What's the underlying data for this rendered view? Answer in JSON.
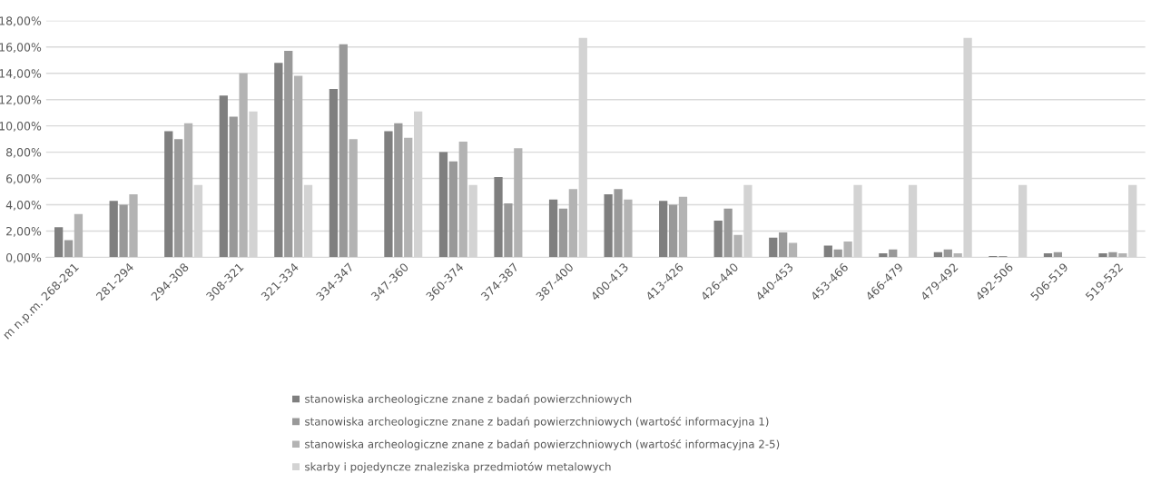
{
  "chart_data": {
    "type": "bar",
    "categories": [
      "m n.p.m. 268-281",
      "281-294",
      "294-308",
      "308-321",
      "321-334",
      "334-347",
      "347-360",
      "360-374",
      "374-387",
      "387-400",
      "400-413",
      "413-426",
      "426-440",
      "440-453",
      "453-466",
      "466-479",
      "479-492",
      "492-506",
      "506-519",
      "519-532"
    ],
    "series": [
      {
        "name": "stanowiska archeologiczne znane z badań powierzchniowych",
        "color": "#7f7f7f",
        "values": [
          2.3,
          4.3,
          9.6,
          12.3,
          14.8,
          12.8,
          9.6,
          8.0,
          6.1,
          4.4,
          4.8,
          4.3,
          2.8,
          1.5,
          0.9,
          0.3,
          0.4,
          0.1,
          0.3,
          0.3
        ]
      },
      {
        "name": "stanowiska archeologiczne znane z badań powierzchniowych (wartość informacyjna 1)",
        "color": "#999999",
        "values": [
          1.3,
          4.0,
          9.0,
          10.7,
          15.7,
          16.2,
          10.2,
          7.3,
          4.1,
          3.7,
          5.2,
          4.0,
          3.7,
          1.9,
          0.6,
          0.6,
          0.6,
          0.1,
          0.4,
          0.4
        ]
      },
      {
        "name": "stanowiska archeologiczne znane z badań powierzchniowych (wartość informacyjna 2-5)",
        "color": "#b3b3b3",
        "values": [
          3.3,
          4.8,
          10.2,
          14.0,
          13.8,
          9.0,
          9.1,
          8.8,
          8.3,
          5.2,
          4.4,
          4.6,
          1.7,
          1.1,
          1.2,
          0,
          0.3,
          0,
          0,
          0.3
        ]
      },
      {
        "name": "skarby i pojedyncze znaleziska przedmiotów metalowych",
        "color": "#d3d3d3",
        "values": [
          0,
          0,
          5.5,
          11.1,
          5.5,
          0,
          11.1,
          5.5,
          0,
          16.7,
          0,
          0,
          5.5,
          0,
          5.5,
          5.5,
          16.7,
          5.5,
          0,
          5.5
        ]
      }
    ],
    "ylim": [
      0,
      18
    ],
    "yticks": [
      {
        "value": 0,
        "label": "0,00%"
      },
      {
        "value": 2,
        "label": "2,00%"
      },
      {
        "value": 4,
        "label": "4,00%"
      },
      {
        "value": 6,
        "label": "6,00%"
      },
      {
        "value": 8,
        "label": "8,00%"
      },
      {
        "value": 10,
        "label": "10,00%"
      },
      {
        "value": 12,
        "label": "12,00%"
      },
      {
        "value": 14,
        "label": "14,00%"
      },
      {
        "value": 16,
        "label": "16,00%"
      },
      {
        "value": 18,
        "label": "18,00%"
      }
    ],
    "grid": "y",
    "legend": "bottom"
  }
}
